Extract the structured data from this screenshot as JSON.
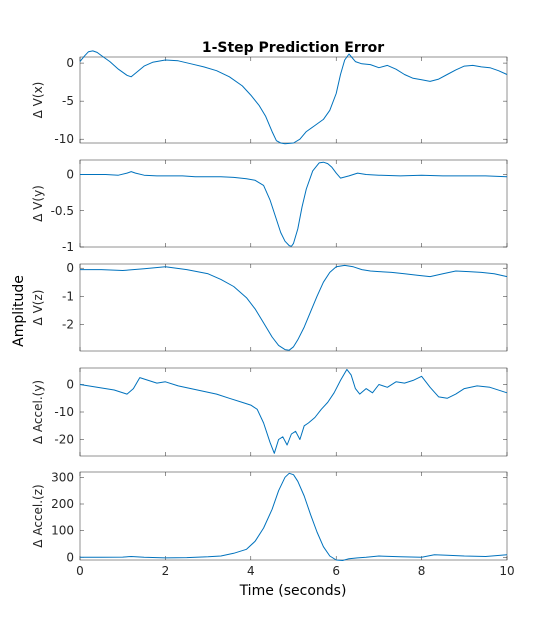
{
  "figure": {
    "title": "1-Step Prediction Error",
    "xlabel": "Time (seconds)",
    "common_ylabel": "Amplitude"
  },
  "chart_data": [
    {
      "type": "line",
      "ylabel": "Δ V(x)",
      "xlim": [
        0,
        10
      ],
      "ylim": [
        -10.5,
        0.8
      ],
      "yticks": [
        0,
        -5,
        -10
      ],
      "color": "#0072BD",
      "x": [
        0,
        0.1,
        0.2,
        0.3,
        0.4,
        0.5,
        0.7,
        0.9,
        1.1,
        1.2,
        1.35,
        1.5,
        1.7,
        2.0,
        2.3,
        2.6,
        2.9,
        3.2,
        3.5,
        3.8,
        4.0,
        4.2,
        4.35,
        4.5,
        4.6,
        4.7,
        4.8,
        5.0,
        5.15,
        5.3,
        5.5,
        5.7,
        5.85,
        6.0,
        6.1,
        6.2,
        6.3,
        6.45,
        6.6,
        6.8,
        7.0,
        7.2,
        7.4,
        7.6,
        7.8,
        8.0,
        8.2,
        8.4,
        8.6,
        8.8,
        9.0,
        9.2,
        9.4,
        9.6,
        9.8,
        10.0
      ],
      "y": [
        0.2,
        0.9,
        1.5,
        1.6,
        1.4,
        1.0,
        0.2,
        -0.8,
        -1.6,
        -1.8,
        -1.1,
        -0.4,
        0.1,
        0.4,
        0.3,
        -0.1,
        -0.5,
        -1.0,
        -1.8,
        -3.0,
        -4.2,
        -5.6,
        -7.0,
        -9.0,
        -10.2,
        -10.5,
        -10.6,
        -10.5,
        -10.0,
        -9.0,
        -8.2,
        -7.4,
        -6.2,
        -4.0,
        -1.5,
        0.4,
        1.2,
        0.2,
        -0.1,
        -0.2,
        -0.6,
        -0.3,
        -0.8,
        -1.5,
        -2.0,
        -2.2,
        -2.4,
        -2.1,
        -1.5,
        -0.9,
        -0.4,
        -0.3,
        -0.5,
        -0.6,
        -1.0,
        -1.5
      ]
    },
    {
      "type": "line",
      "ylabel": "Δ V(y)",
      "xlim": [
        0,
        10
      ],
      "ylim": [
        -1,
        0.2
      ],
      "yticks": [
        0,
        -0.5,
        -1
      ],
      "color": "#0072BD",
      "x": [
        0,
        0.3,
        0.6,
        0.9,
        1.1,
        1.2,
        1.3,
        1.5,
        1.8,
        2.1,
        2.4,
        2.7,
        3.0,
        3.3,
        3.6,
        3.9,
        4.1,
        4.3,
        4.45,
        4.6,
        4.7,
        4.8,
        4.9,
        4.95,
        5.0,
        5.1,
        5.2,
        5.3,
        5.45,
        5.6,
        5.7,
        5.8,
        5.9,
        6.0,
        6.1,
        6.3,
        6.5,
        6.7,
        7.0,
        7.5,
        8.0,
        8.5,
        9.0,
        9.5,
        10.0
      ],
      "y": [
        0.0,
        0.0,
        0.0,
        -0.01,
        0.02,
        0.04,
        0.02,
        -0.01,
        -0.02,
        -0.02,
        -0.02,
        -0.03,
        -0.03,
        -0.03,
        -0.04,
        -0.06,
        -0.08,
        -0.15,
        -0.35,
        -0.62,
        -0.8,
        -0.92,
        -0.98,
        -0.99,
        -0.95,
        -0.75,
        -0.45,
        -0.2,
        0.05,
        0.16,
        0.17,
        0.15,
        0.1,
        0.02,
        -0.05,
        -0.02,
        0.02,
        0.0,
        -0.01,
        -0.02,
        -0.01,
        -0.02,
        -0.02,
        -0.02,
        -0.03
      ]
    },
    {
      "type": "line",
      "ylabel": "Δ V(z)",
      "xlim": [
        0,
        10
      ],
      "ylim": [
        -2.95,
        0.15
      ],
      "yticks": [
        0,
        -1,
        -2
      ],
      "color": "#0072BD",
      "x": [
        0,
        0.5,
        1.0,
        1.5,
        2.0,
        2.5,
        3.0,
        3.3,
        3.6,
        3.9,
        4.1,
        4.3,
        4.5,
        4.65,
        4.8,
        4.9,
        5.0,
        5.1,
        5.25,
        5.4,
        5.55,
        5.7,
        5.85,
        6.0,
        6.2,
        6.4,
        6.6,
        6.8,
        7.0,
        7.3,
        7.6,
        7.9,
        8.2,
        8.5,
        8.8,
        9.1,
        9.4,
        9.7,
        10.0
      ],
      "y": [
        -0.05,
        -0.05,
        -0.08,
        -0.02,
        0.05,
        -0.05,
        -0.2,
        -0.4,
        -0.65,
        -1.05,
        -1.45,
        -1.95,
        -2.45,
        -2.75,
        -2.9,
        -2.92,
        -2.8,
        -2.55,
        -2.1,
        -1.55,
        -1.0,
        -0.5,
        -0.15,
        0.05,
        0.1,
        0.05,
        -0.05,
        -0.1,
        -0.12,
        -0.15,
        -0.2,
        -0.25,
        -0.3,
        -0.2,
        -0.1,
        -0.12,
        -0.15,
        -0.2,
        -0.3
      ]
    },
    {
      "type": "line",
      "ylabel": "Δ Accel.(y)",
      "xlim": [
        0,
        10
      ],
      "ylim": [
        -26,
        6
      ],
      "yticks": [
        0,
        -10,
        -20
      ],
      "color": "#0072BD",
      "x": [
        0,
        0.4,
        0.8,
        1.1,
        1.25,
        1.4,
        1.6,
        1.8,
        2.0,
        2.3,
        2.6,
        2.9,
        3.2,
        3.5,
        3.8,
        4.0,
        4.15,
        4.3,
        4.45,
        4.55,
        4.65,
        4.75,
        4.85,
        4.95,
        5.05,
        5.15,
        5.25,
        5.35,
        5.5,
        5.65,
        5.8,
        5.95,
        6.1,
        6.25,
        6.35,
        6.45,
        6.55,
        6.7,
        6.85,
        7.0,
        7.2,
        7.4,
        7.6,
        7.8,
        8.0,
        8.2,
        8.4,
        8.6,
        8.8,
        9.0,
        9.3,
        9.6,
        10.0
      ],
      "y": [
        0.0,
        -1.0,
        -2.0,
        -3.5,
        -1.5,
        2.5,
        1.5,
        0.5,
        1.0,
        -0.5,
        -1.5,
        -2.5,
        -3.5,
        -5.0,
        -6.5,
        -7.5,
        -9.0,
        -14.0,
        -21.0,
        -25.0,
        -20.0,
        -19.0,
        -22.0,
        -18.0,
        -17.0,
        -20.0,
        -15.0,
        -14.0,
        -12.0,
        -9.0,
        -6.5,
        -3.0,
        1.5,
        5.5,
        3.5,
        -1.5,
        -3.5,
        -1.5,
        -3.0,
        0.0,
        -1.0,
        1.0,
        0.5,
        1.5,
        3.0,
        -1.0,
        -4.5,
        -5.0,
        -3.5,
        -1.5,
        -0.5,
        -1.0,
        -3.0
      ]
    },
    {
      "type": "line",
      "ylabel": "Δ Accel.(z)",
      "xlim": [
        0,
        10
      ],
      "ylim": [
        -10,
        320
      ],
      "yticks": [
        0,
        100,
        200,
        300
      ],
      "color": "#0072BD",
      "x": [
        0,
        0.5,
        1.0,
        1.2,
        1.5,
        2.0,
        2.5,
        3.0,
        3.3,
        3.6,
        3.9,
        4.1,
        4.3,
        4.5,
        4.65,
        4.8,
        4.9,
        5.0,
        5.1,
        5.25,
        5.4,
        5.55,
        5.7,
        5.85,
        6.0,
        6.15,
        6.3,
        6.5,
        6.7,
        7.0,
        7.5,
        8.0,
        8.3,
        8.6,
        9.0,
        9.5,
        10.0
      ],
      "y": [
        0,
        0,
        1,
        3,
        0,
        -2,
        -1,
        2,
        5,
        15,
        30,
        60,
        110,
        180,
        250,
        300,
        315,
        310,
        285,
        230,
        160,
        95,
        40,
        5,
        -10,
        -12,
        -5,
        -2,
        0,
        5,
        2,
        0,
        10,
        8,
        5,
        3,
        10
      ]
    }
  ]
}
